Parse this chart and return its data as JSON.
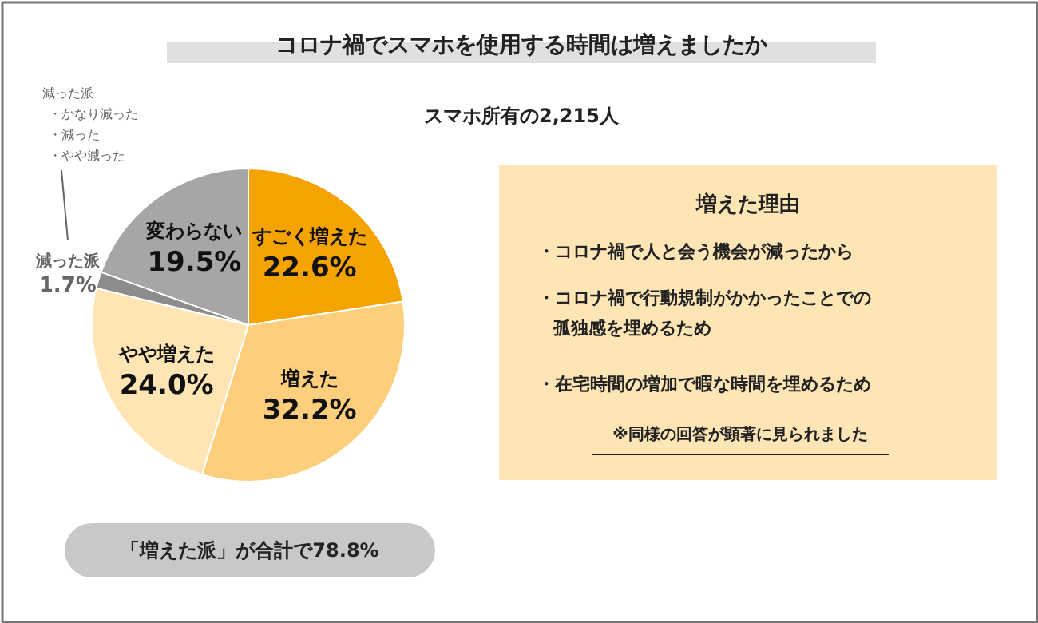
{
  "chart_data": {
    "type": "pie",
    "title": "コロナ禍でスマホを使用する時間は増えましたか",
    "subtitle": "スマホ所有の2,215人",
    "categories": [
      "すごく増えた",
      "増えた",
      "やや増えた",
      "減った派",
      "変わらない"
    ],
    "values": [
      22.6,
      32.2,
      24.0,
      1.7,
      19.5
    ],
    "value_labels": [
      "22.6%",
      "32.2%",
      "24.0%",
      "1.7%",
      "19.5%"
    ],
    "colors": [
      "#f5a300",
      "#fdcf7c",
      "#fee5b3",
      "#8c8c8c",
      "#a6a6a6"
    ],
    "annotations": [
      "減った派",
      "・かなり減った",
      "・減った",
      "・やや減った",
      "増えた理由",
      "・コロナ禍で人と会う機会が減ったから",
      "・コロナ禍で行動規制がかかったことでの",
      "孤独感を埋めるため",
      "・在宅時間の増加で暇な時間を埋めるため",
      "※同様の回答が顕著に見られました",
      "「増えた派」が合計で78.8%"
    ]
  }
}
